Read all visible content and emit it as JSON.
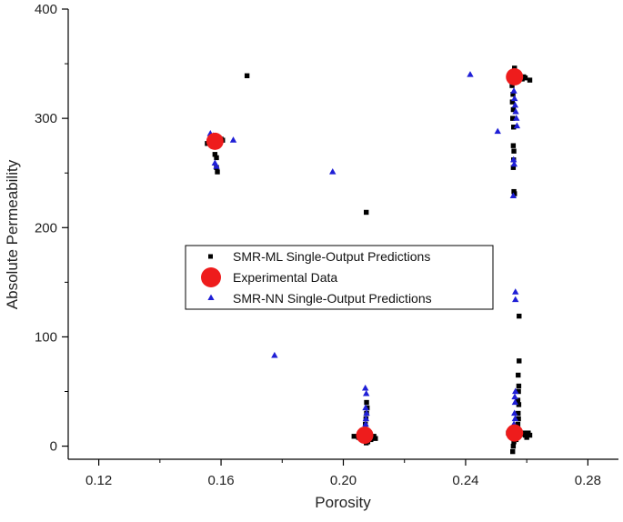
{
  "chart_data": {
    "type": "scatter",
    "title": "",
    "xlabel": "Porosity",
    "ylabel": "Absolute Permeability",
    "xlim": [
      0.11,
      0.29
    ],
    "ylim": [
      -12,
      400
    ],
    "xticks": [
      0.12,
      0.16,
      0.2,
      0.24,
      0.28
    ],
    "xtick_labels": [
      "0.12",
      "0.16",
      "0.20",
      "0.24",
      "0.28"
    ],
    "yticks": [
      0,
      100,
      200,
      300,
      400
    ],
    "ytick_labels": [
      "0",
      "100",
      "200",
      "300",
      "400"
    ],
    "grid": false,
    "legend_position": "center",
    "series": [
      {
        "name": "SMR-ML Single-Output Predictions",
        "marker": "square",
        "color": "#000000",
        "points": [
          [
            0.1555,
            277
          ],
          [
            0.1565,
            278
          ],
          [
            0.157,
            280
          ],
          [
            0.1575,
            279
          ],
          [
            0.158,
            281
          ],
          [
            0.1585,
            276
          ],
          [
            0.159,
            278
          ],
          [
            0.1595,
            280
          ],
          [
            0.16,
            281
          ],
          [
            0.1605,
            280
          ],
          [
            0.158,
            267
          ],
          [
            0.1585,
            264
          ],
          [
            0.1585,
            255
          ],
          [
            0.1588,
            251
          ],
          [
            0.1685,
            339
          ],
          [
            0.2075,
            214
          ],
          [
            0.2035,
            9
          ],
          [
            0.205,
            8
          ],
          [
            0.2065,
            7
          ],
          [
            0.207,
            5
          ],
          [
            0.2075,
            3
          ],
          [
            0.208,
            4
          ],
          [
            0.209,
            6
          ],
          [
            0.2095,
            8
          ],
          [
            0.21,
            9
          ],
          [
            0.2105,
            7
          ],
          [
            0.2085,
            11
          ],
          [
            0.2075,
            15
          ],
          [
            0.2072,
            20
          ],
          [
            0.2074,
            25
          ],
          [
            0.2076,
            30
          ],
          [
            0.2078,
            35
          ],
          [
            0.2076,
            40
          ],
          [
            0.2545,
            339
          ],
          [
            0.255,
            337
          ],
          [
            0.2555,
            340
          ],
          [
            0.256,
            346
          ],
          [
            0.2565,
            338
          ],
          [
            0.257,
            340
          ],
          [
            0.2575,
            339
          ],
          [
            0.258,
            337
          ],
          [
            0.2585,
            336
          ],
          [
            0.259,
            338
          ],
          [
            0.2595,
            337
          ],
          [
            0.261,
            335
          ],
          [
            0.2552,
            330
          ],
          [
            0.2555,
            322
          ],
          [
            0.2553,
            315
          ],
          [
            0.2556,
            308
          ],
          [
            0.2554,
            300
          ],
          [
            0.2557,
            292
          ],
          [
            0.2556,
            275
          ],
          [
            0.2558,
            270
          ],
          [
            0.2557,
            262
          ],
          [
            0.2556,
            255
          ],
          [
            0.2558,
            233
          ],
          [
            0.256,
            231
          ],
          [
            0.2575,
            119
          ],
          [
            0.2575,
            78
          ],
          [
            0.2572,
            65
          ],
          [
            0.2574,
            55
          ],
          [
            0.2573,
            50
          ],
          [
            0.2571,
            42
          ],
          [
            0.2574,
            38
          ],
          [
            0.2572,
            30
          ],
          [
            0.2573,
            25
          ],
          [
            0.2571,
            20
          ],
          [
            0.254,
            12
          ],
          [
            0.255,
            10
          ],
          [
            0.256,
            8
          ],
          [
            0.2565,
            6
          ],
          [
            0.257,
            9
          ],
          [
            0.258,
            11
          ],
          [
            0.259,
            12
          ],
          [
            0.2595,
            10
          ],
          [
            0.26,
            8
          ],
          [
            0.2605,
            12
          ],
          [
            0.261,
            10
          ],
          [
            0.2558,
            4
          ],
          [
            0.2556,
            0
          ],
          [
            0.2554,
            -5
          ]
        ]
      },
      {
        "name": "Experimental Data",
        "marker": "circle",
        "color": "#ee1c1c",
        "points": [
          [
            0.158,
            279
          ],
          [
            0.207,
            10
          ],
          [
            0.256,
            338
          ],
          [
            0.256,
            12
          ]
        ]
      },
      {
        "name": "SMR-NN Single-Output Predictions",
        "marker": "triangle",
        "color": "#1f1fd6",
        "points": [
          [
            0.1565,
            286
          ],
          [
            0.1575,
            284
          ],
          [
            0.1585,
            283
          ],
          [
            0.159,
            281
          ],
          [
            0.164,
            280
          ],
          [
            0.158,
            259
          ],
          [
            0.1585,
            256
          ],
          [
            0.1775,
            83
          ],
          [
            0.1965,
            251
          ],
          [
            0.2072,
            53
          ],
          [
            0.2075,
            48
          ],
          [
            0.2073,
            35
          ],
          [
            0.2076,
            30
          ],
          [
            0.2074,
            25
          ],
          [
            0.2073,
            20
          ],
          [
            0.2075,
            15
          ],
          [
            0.2078,
            12
          ],
          [
            0.207,
            9
          ],
          [
            0.208,
            11
          ],
          [
            0.2065,
            13
          ],
          [
            0.2085,
            10
          ],
          [
            0.2415,
            340
          ],
          [
            0.2505,
            288
          ],
          [
            0.2552,
            337
          ],
          [
            0.2556,
            333
          ],
          [
            0.2558,
            325
          ],
          [
            0.256,
            318
          ],
          [
            0.2562,
            312
          ],
          [
            0.2564,
            306
          ],
          [
            0.2566,
            300
          ],
          [
            0.2568,
            293
          ],
          [
            0.2557,
            262
          ],
          [
            0.2559,
            258
          ],
          [
            0.2556,
            229
          ],
          [
            0.2563,
            141
          ],
          [
            0.2563,
            134
          ],
          [
            0.2563,
            50
          ],
          [
            0.2561,
            45
          ],
          [
            0.2562,
            40
          ],
          [
            0.256,
            30
          ],
          [
            0.2562,
            25
          ],
          [
            0.2558,
            20
          ],
          [
            0.2563,
            16
          ],
          [
            0.2555,
            12
          ],
          [
            0.2565,
            10
          ],
          [
            0.257,
            14
          ]
        ]
      }
    ]
  }
}
